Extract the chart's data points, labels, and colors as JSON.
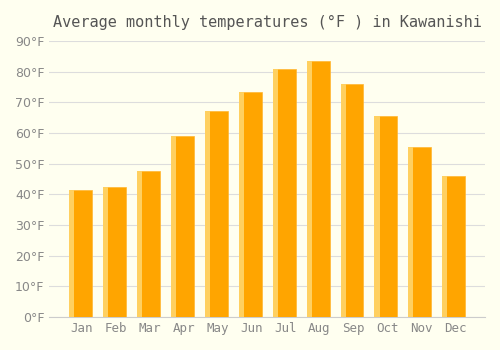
{
  "title": "Average monthly temperatures (°F ) in Kawanishi",
  "months": [
    "Jan",
    "Feb",
    "Mar",
    "Apr",
    "May",
    "Jun",
    "Jul",
    "Aug",
    "Sep",
    "Oct",
    "Nov",
    "Dec"
  ],
  "values": [
    41.5,
    42.5,
    47.5,
    59.0,
    67.0,
    73.5,
    81.0,
    83.5,
    76.0,
    65.5,
    55.5,
    46.0
  ],
  "bar_color": "#FFA500",
  "bar_edge_color": "#FFB733",
  "background_color": "#FFFFF0",
  "ylim": [
    0,
    90
  ],
  "yticks": [
    0,
    10,
    20,
    30,
    40,
    50,
    60,
    70,
    80,
    90
  ],
  "grid_color": "#dddddd",
  "title_fontsize": 11,
  "tick_fontsize": 9
}
